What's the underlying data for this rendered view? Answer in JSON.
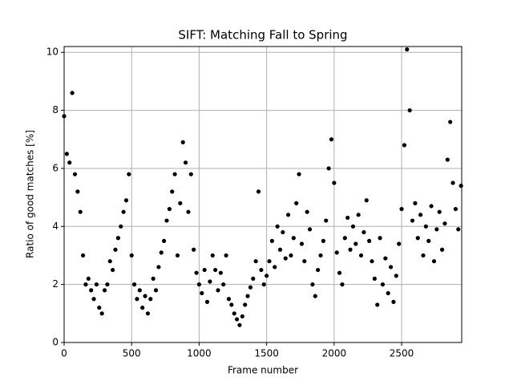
{
  "chart_data": {
    "type": "scatter",
    "title": "SIFT: Matching Fall to Spring",
    "x_label": "Frame number",
    "y_label": "Ratio of good matches [%]",
    "x": [
      0,
      20,
      40,
      60,
      80,
      100,
      120,
      140,
      160,
      180,
      200,
      220,
      240,
      260,
      280,
      300,
      320,
      340,
      360,
      380,
      400,
      420,
      440,
      460,
      480,
      500,
      520,
      540,
      560,
      580,
      600,
      620,
      640,
      660,
      680,
      700,
      720,
      740,
      760,
      780,
      800,
      820,
      840,
      860,
      880,
      900,
      920,
      940,
      960,
      980,
      1000,
      1020,
      1040,
      1060,
      1080,
      1100,
      1120,
      1140,
      1160,
      1180,
      1200,
      1220,
      1240,
      1260,
      1280,
      1300,
      1320,
      1340,
      1360,
      1380,
      1400,
      1420,
      1440,
      1460,
      1480,
      1500,
      1520,
      1540,
      1560,
      1580,
      1600,
      1620,
      1640,
      1660,
      1680,
      1700,
      1720,
      1740,
      1760,
      1780,
      1800,
      1820,
      1840,
      1860,
      1880,
      1900,
      1920,
      1940,
      1960,
      1980,
      2000,
      2020,
      2040,
      2060,
      2080,
      2100,
      2120,
      2140,
      2160,
      2180,
      2200,
      2220,
      2240,
      2260,
      2280,
      2300,
      2320,
      2340,
      2360,
      2380,
      2400,
      2420,
      2440,
      2460,
      2480,
      2500,
      2520,
      2540,
      2560,
      2580,
      2600,
      2620,
      2640,
      2660,
      2680,
      2700,
      2720,
      2740,
      2760,
      2780,
      2800,
      2820,
      2840,
      2860,
      2880,
      2900,
      2920,
      2940
    ],
    "values": [
      7.8,
      6.5,
      6.2,
      8.6,
      5.8,
      5.2,
      4.5,
      3.0,
      2.0,
      2.2,
      1.8,
      1.5,
      2.0,
      1.2,
      1.0,
      1.8,
      2.0,
      2.8,
      2.5,
      3.2,
      3.6,
      4.0,
      4.5,
      4.9,
      5.8,
      3.0,
      2.0,
      1.5,
      1.8,
      1.2,
      1.6,
      1.0,
      1.5,
      2.2,
      1.8,
      2.6,
      3.1,
      3.5,
      4.2,
      4.6,
      5.2,
      5.8,
      3.0,
      4.8,
      6.9,
      6.2,
      4.5,
      5.8,
      3.2,
      2.4,
      2.0,
      1.7,
      2.5,
      1.4,
      2.1,
      3.0,
      2.5,
      1.8,
      2.4,
      2.0,
      3.0,
      1.5,
      1.3,
      1.0,
      0.8,
      0.6,
      0.9,
      1.3,
      1.6,
      1.9,
      2.2,
      2.8,
      5.2,
      2.5,
      2.0,
      2.3,
      2.8,
      3.5,
      2.6,
      4.0,
      3.2,
      3.8,
      2.9,
      4.4,
      3.0,
      3.6,
      4.8,
      5.8,
      3.4,
      2.8,
      4.5,
      3.9,
      2.0,
      1.6,
      2.5,
      3.0,
      3.5,
      4.2,
      6.0,
      7.0,
      5.5,
      3.1,
      2.4,
      2.0,
      3.6,
      4.3,
      3.2,
      4.0,
      3.4,
      4.4,
      3.0,
      3.8,
      4.9,
      3.5,
      2.8,
      2.2,
      1.3,
      3.6,
      2.0,
      2.9,
      1.7,
      2.6,
      1.4,
      2.3,
      3.4,
      4.6,
      6.8,
      10.1,
      8.0,
      4.2,
      4.8,
      3.6,
      4.4,
      3.0,
      4.0,
      3.5,
      4.7,
      2.8,
      3.9,
      4.5,
      3.2,
      4.1,
      6.3,
      7.6,
      5.5,
      4.6,
      3.9,
      5.4
    ],
    "color": "#000000",
    "xlim": [
      0,
      2945
    ],
    "ylim": [
      0,
      10.2
    ],
    "xticks": [
      0,
      500,
      1000,
      1500,
      2000,
      2500
    ],
    "yticks": [
      0,
      2,
      4,
      6,
      8,
      10
    ],
    "grid": true
  }
}
